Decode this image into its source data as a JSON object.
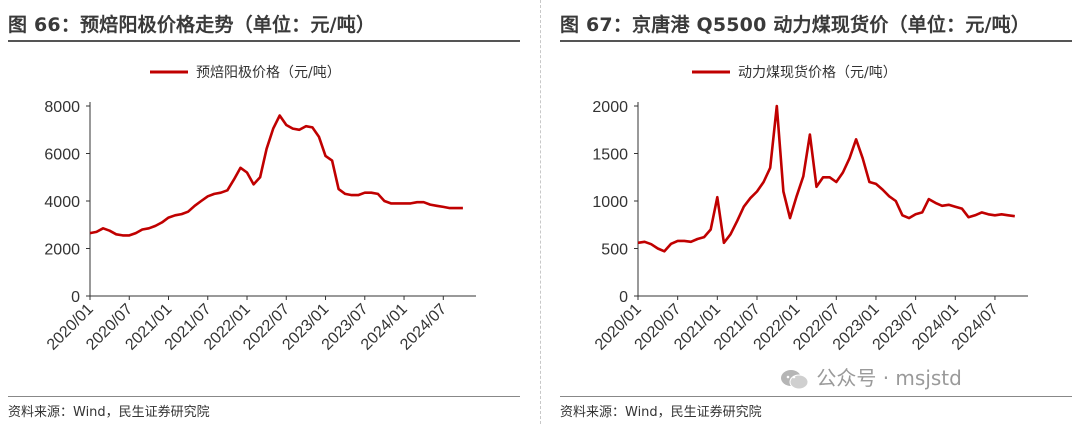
{
  "left": {
    "title": "图 66：预焙阳极价格走势（单位：元/吨）",
    "source": "资料来源：Wind，民生证券研究院"
  },
  "right": {
    "title": "图 67：京唐港 Q5500 动力煤现货价（单位：元/吨）",
    "source": "资料来源：Wind，民生证券研究院"
  },
  "watermark": "公众号 · msjstd",
  "colors": {
    "series": "#c00000",
    "axis": "#333333",
    "text": "#333333"
  },
  "chart_data": [
    {
      "type": "line",
      "x_ticks": [
        "2020/01",
        "2020/07",
        "2021/01",
        "2021/07",
        "2022/01",
        "2022/07",
        "2023/01",
        "2023/07",
        "2024/01",
        "2024/07"
      ],
      "x_range": [
        "2020/01",
        "2024/12"
      ],
      "ylim": [
        0,
        8000
      ],
      "y_ticks": [
        0,
        2000,
        4000,
        6000,
        8000
      ],
      "grid": false,
      "legend_position": "top",
      "series": [
        {
          "name": "预焙阳极价格（元/吨）",
          "points": [
            [
              "2020/01",
              2650
            ],
            [
              "2020/02",
              2700
            ],
            [
              "2020/03",
              2850
            ],
            [
              "2020/04",
              2750
            ],
            [
              "2020/05",
              2600
            ],
            [
              "2020/06",
              2550
            ],
            [
              "2020/07",
              2550
            ],
            [
              "2020/08",
              2650
            ],
            [
              "2020/09",
              2800
            ],
            [
              "2020/10",
              2850
            ],
            [
              "2020/11",
              2950
            ],
            [
              "2020/12",
              3100
            ],
            [
              "2021/01",
              3300
            ],
            [
              "2021/02",
              3400
            ],
            [
              "2021/03",
              3450
            ],
            [
              "2021/04",
              3550
            ],
            [
              "2021/05",
              3800
            ],
            [
              "2021/06",
              4000
            ],
            [
              "2021/07",
              4200
            ],
            [
              "2021/08",
              4300
            ],
            [
              "2021/09",
              4350
            ],
            [
              "2021/10",
              4450
            ],
            [
              "2021/11",
              4900
            ],
            [
              "2021/12",
              5400
            ],
            [
              "2022/01",
              5200
            ],
            [
              "2022/02",
              4700
            ],
            [
              "2022/03",
              5000
            ],
            [
              "2022/04",
              6200
            ],
            [
              "2022/05",
              7050
            ],
            [
              "2022/06",
              7600
            ],
            [
              "2022/07",
              7200
            ],
            [
              "2022/08",
              7050
            ],
            [
              "2022/09",
              7000
            ],
            [
              "2022/10",
              7150
            ],
            [
              "2022/11",
              7100
            ],
            [
              "2022/12",
              6700
            ],
            [
              "2023/01",
              5900
            ],
            [
              "2023/02",
              5700
            ],
            [
              "2023/03",
              4500
            ],
            [
              "2023/04",
              4300
            ],
            [
              "2023/05",
              4250
            ],
            [
              "2023/06",
              4250
            ],
            [
              "2023/07",
              4350
            ],
            [
              "2023/08",
              4350
            ],
            [
              "2023/09",
              4300
            ],
            [
              "2023/10",
              4000
            ],
            [
              "2023/11",
              3900
            ],
            [
              "2023/12",
              3900
            ],
            [
              "2024/01",
              3900
            ],
            [
              "2024/02",
              3900
            ],
            [
              "2024/03",
              3950
            ],
            [
              "2024/04",
              3950
            ],
            [
              "2024/05",
              3850
            ],
            [
              "2024/06",
              3800
            ],
            [
              "2024/07",
              3750
            ],
            [
              "2024/08",
              3700
            ],
            [
              "2024/09",
              3700
            ],
            [
              "2024/10",
              3700
            ]
          ]
        }
      ]
    },
    {
      "type": "line",
      "x_ticks": [
        "2020/01",
        "2020/07",
        "2021/01",
        "2021/07",
        "2022/01",
        "2022/07",
        "2023/01",
        "2023/07",
        "2024/01",
        "2024/07"
      ],
      "x_range": [
        "2020/01",
        "2024/12"
      ],
      "ylim": [
        0,
        2000
      ],
      "y_ticks": [
        0,
        500,
        1000,
        1500,
        2000
      ],
      "grid": false,
      "legend_position": "top",
      "series": [
        {
          "name": "动力煤现货价格（元/吨）",
          "points": [
            [
              "2020/01",
              560
            ],
            [
              "2020/02",
              570
            ],
            [
              "2020/03",
              545
            ],
            [
              "2020/04",
              500
            ],
            [
              "2020/05",
              470
            ],
            [
              "2020/06",
              550
            ],
            [
              "2020/07",
              580
            ],
            [
              "2020/08",
              580
            ],
            [
              "2020/09",
              570
            ],
            [
              "2020/10",
              600
            ],
            [
              "2020/11",
              620
            ],
            [
              "2020/12",
              700
            ],
            [
              "2021/01",
              1040
            ],
            [
              "2021/02",
              560
            ],
            [
              "2021/03",
              650
            ],
            [
              "2021/04",
              790
            ],
            [
              "2021/05",
              940
            ],
            [
              "2021/06",
              1030
            ],
            [
              "2021/07",
              1100
            ],
            [
              "2021/08",
              1200
            ],
            [
              "2021/09",
              1350
            ],
            [
              "2021/10",
              2000
            ],
            [
              "2021/11",
              1100
            ],
            [
              "2021/12",
              820
            ],
            [
              "2022/01",
              1050
            ],
            [
              "2022/02",
              1260
            ],
            [
              "2022/03",
              1700
            ],
            [
              "2022/04",
              1150
            ],
            [
              "2022/05",
              1250
            ],
            [
              "2022/06",
              1250
            ],
            [
              "2022/07",
              1200
            ],
            [
              "2022/08",
              1300
            ],
            [
              "2022/09",
              1450
            ],
            [
              "2022/10",
              1650
            ],
            [
              "2022/11",
              1450
            ],
            [
              "2022/12",
              1200
            ],
            [
              "2023/01",
              1180
            ],
            [
              "2023/02",
              1120
            ],
            [
              "2023/03",
              1050
            ],
            [
              "2023/04",
              1000
            ],
            [
              "2023/05",
              850
            ],
            [
              "2023/06",
              820
            ],
            [
              "2023/07",
              860
            ],
            [
              "2023/08",
              880
            ],
            [
              "2023/09",
              1020
            ],
            [
              "2023/10",
              980
            ],
            [
              "2023/11",
              950
            ],
            [
              "2023/12",
              960
            ],
            [
              "2024/01",
              940
            ],
            [
              "2024/02",
              920
            ],
            [
              "2024/03",
              830
            ],
            [
              "2024/04",
              850
            ],
            [
              "2024/05",
              880
            ],
            [
              "2024/06",
              860
            ],
            [
              "2024/07",
              850
            ],
            [
              "2024/08",
              860
            ],
            [
              "2024/09",
              850
            ],
            [
              "2024/10",
              840
            ]
          ]
        }
      ]
    }
  ]
}
